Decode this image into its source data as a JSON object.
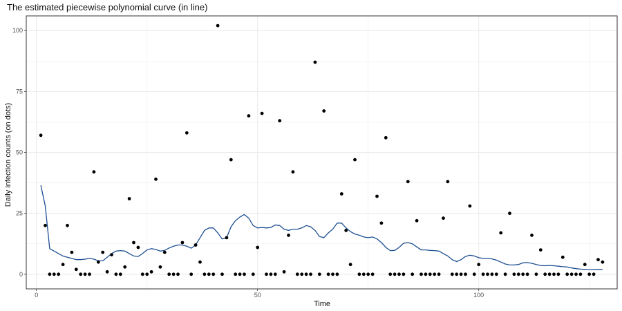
{
  "colors": {
    "line": "#1c4e91",
    "dot": "#000000",
    "grid": "#ebebeb",
    "panel_border": "#333333"
  },
  "chart_data": {
    "type": "scatter",
    "title": "The estimated piecewise polynomial curve (in line)",
    "xlabel": "Time",
    "ylabel": "Daily infection counts (on dots)",
    "xlim": [
      -2.3,
      131.3
    ],
    "ylim": [
      -6,
      106
    ],
    "x_ticks": [
      0,
      50,
      100
    ],
    "y_ticks": [
      0,
      25,
      50,
      75,
      100
    ],
    "grid": true,
    "legend": "none",
    "series": [
      {
        "kind": "points",
        "x": [
          1,
          2,
          3,
          4,
          5,
          6,
          7,
          8,
          9,
          10,
          11,
          12,
          13,
          14,
          15,
          16,
          17,
          18,
          19,
          20,
          21,
          22,
          23,
          24,
          25,
          26,
          27,
          28,
          29,
          30,
          31,
          32,
          33,
          34,
          35,
          36,
          37,
          38,
          39,
          40,
          41,
          42,
          43,
          44,
          45,
          46,
          47,
          48,
          49,
          50,
          51,
          52,
          53,
          54,
          55,
          56,
          57,
          58,
          59,
          60,
          61,
          62,
          63,
          64,
          65,
          66,
          67,
          68,
          69,
          70,
          71,
          72,
          73,
          74,
          75,
          76,
          77,
          78,
          79,
          80,
          81,
          82,
          83,
          84,
          85,
          86,
          87,
          88,
          89,
          90,
          91,
          92,
          93,
          94,
          95,
          96,
          97,
          98,
          99,
          100,
          101,
          102,
          103,
          104,
          105,
          106,
          107,
          108,
          109,
          110,
          111,
          112,
          113,
          114,
          115,
          116,
          117,
          118,
          119,
          120,
          121,
          122,
          123,
          124,
          125,
          126,
          127,
          128
        ],
        "y": [
          57,
          20,
          0,
          0,
          0,
          4,
          20,
          9,
          2,
          0,
          0,
          0,
          42,
          5,
          9,
          1,
          8,
          0,
          0,
          3,
          31,
          13,
          11,
          0,
          0,
          1,
          39,
          3,
          9,
          0,
          0,
          0,
          13,
          58,
          0,
          12,
          5,
          0,
          0,
          0,
          102,
          0,
          15,
          47,
          0,
          0,
          0,
          65,
          0,
          11,
          66,
          0,
          0,
          0,
          63,
          1,
          16,
          42,
          0,
          0,
          0,
          0,
          87,
          0,
          67,
          0,
          0,
          0,
          33,
          18,
          4,
          47,
          0,
          0,
          0,
          0,
          32,
          21,
          56,
          0,
          0,
          0,
          0,
          38,
          0,
          22,
          0,
          0,
          0,
          0,
          0,
          23,
          38,
          0,
          0,
          0,
          0,
          28,
          0,
          4,
          0,
          0,
          0,
          0,
          17,
          0,
          25,
          0,
          0,
          0,
          0,
          16,
          0,
          10,
          0,
          0,
          0,
          0,
          7,
          0,
          0,
          0,
          0,
          4,
          0,
          0,
          6,
          5
        ]
      },
      {
        "kind": "line",
        "x": [
          1,
          2,
          3,
          4,
          5,
          6,
          7,
          8,
          9,
          10,
          11,
          12,
          13,
          14,
          15,
          16,
          17,
          18,
          19,
          20,
          21,
          22,
          23,
          24,
          25,
          26,
          27,
          28,
          29,
          30,
          31,
          32,
          33,
          34,
          35,
          36,
          37,
          38,
          39,
          40,
          41,
          42,
          43,
          44,
          45,
          46,
          47,
          48,
          49,
          50,
          51,
          52,
          53,
          54,
          55,
          56,
          57,
          58,
          59,
          60,
          61,
          62,
          63,
          64,
          65,
          66,
          67,
          68,
          69,
          70,
          71,
          72,
          73,
          74,
          75,
          76,
          77,
          78,
          79,
          80,
          81,
          82,
          83,
          84,
          85,
          86,
          87,
          88,
          89,
          90,
          91,
          92,
          93,
          94,
          95,
          96,
          97,
          98,
          99,
          100,
          101,
          102,
          103,
          104,
          105,
          106,
          107,
          108,
          109,
          110,
          111,
          112,
          113,
          114,
          115,
          116,
          117,
          118,
          119,
          120,
          121,
          122,
          123,
          124,
          125,
          126,
          127,
          128
        ],
        "y": [
          36.5,
          28,
          10.5,
          9.5,
          8.5,
          7.5,
          7,
          6.5,
          6,
          6,
          6.2,
          6.5,
          6.2,
          5.5,
          5.5,
          7,
          8.5,
          9.5,
          9.7,
          9.5,
          8.5,
          7.5,
          7.3,
          8.5,
          10,
          10.5,
          10.2,
          9.5,
          9.8,
          10.8,
          11.5,
          12,
          12,
          11.5,
          10.7,
          12,
          15,
          18,
          19,
          19,
          17,
          14.5,
          15,
          19.5,
          22,
          23.5,
          24.5,
          23,
          20,
          19,
          19.2,
          19,
          19.2,
          20.2,
          20,
          18.5,
          18,
          18.5,
          18.5,
          19,
          20,
          19.5,
          18,
          15.5,
          15,
          17,
          18.5,
          21,
          21,
          19,
          17.5,
          16.5,
          16,
          15.3,
          15,
          15.3,
          14.5,
          13,
          11,
          9.7,
          9.8,
          11,
          12.7,
          13,
          12.5,
          11.2,
          10,
          10,
          9.8,
          9.7,
          9.5,
          8.5,
          7.5,
          6,
          5.2,
          6,
          7.3,
          7.8,
          7.5,
          6.8,
          6.5,
          6.5,
          6.3,
          5.8,
          5,
          4.2,
          3.8,
          3.8,
          4,
          4.7,
          4.8,
          4.5,
          4,
          3.6,
          3.5,
          3.6,
          3.5,
          3.3,
          3.1,
          3,
          2.6,
          2.3,
          2.1,
          2,
          1.9,
          1.9,
          2,
          2
        ]
      }
    ]
  }
}
